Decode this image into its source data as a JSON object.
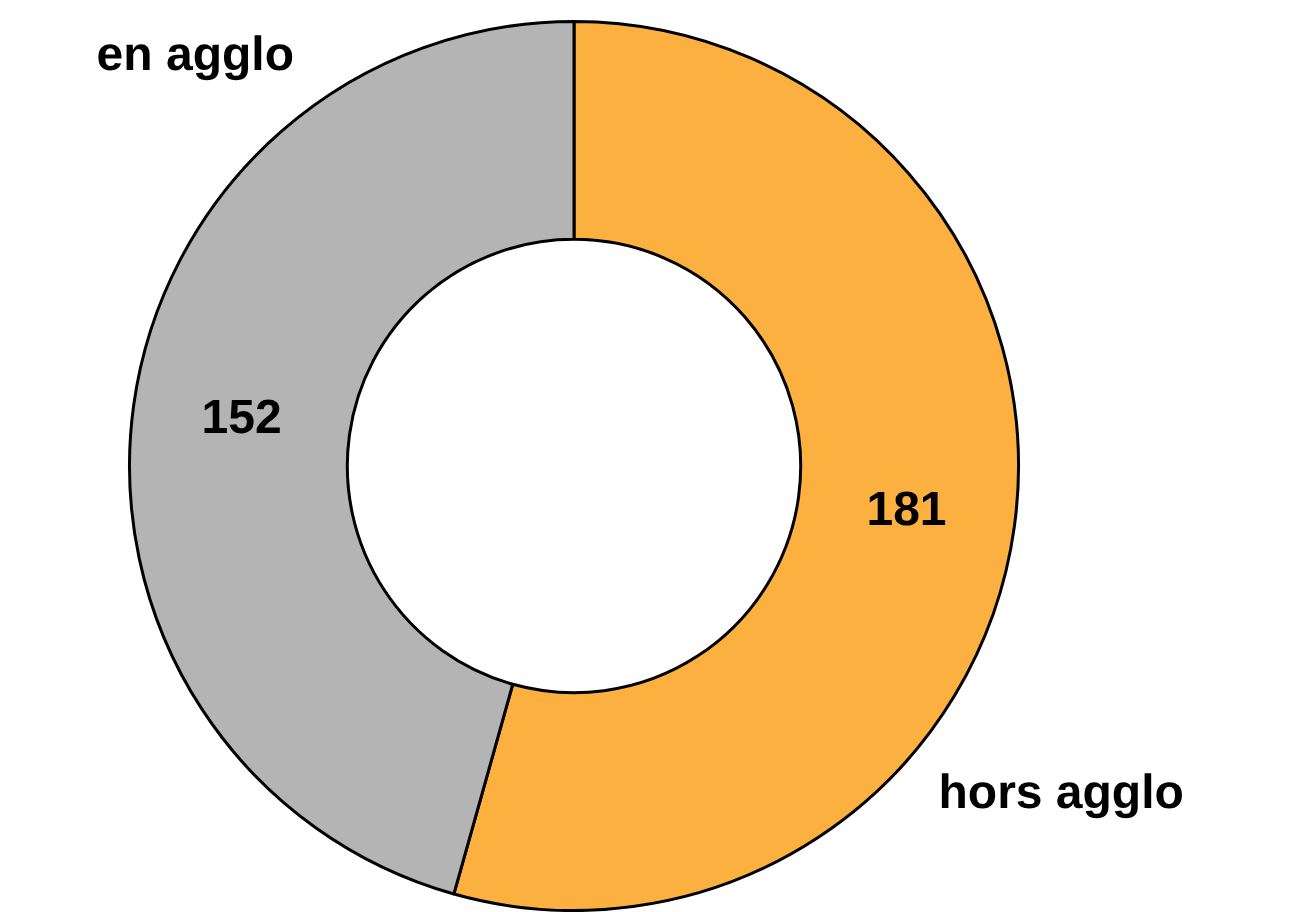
{
  "chart_data": {
    "type": "donut",
    "categories": [
      "hors agglo",
      "en agglo"
    ],
    "values": [
      181,
      152
    ],
    "colors": [
      "#fbb040",
      "#b4b4b4"
    ],
    "data_labels": true,
    "legend": false
  }
}
